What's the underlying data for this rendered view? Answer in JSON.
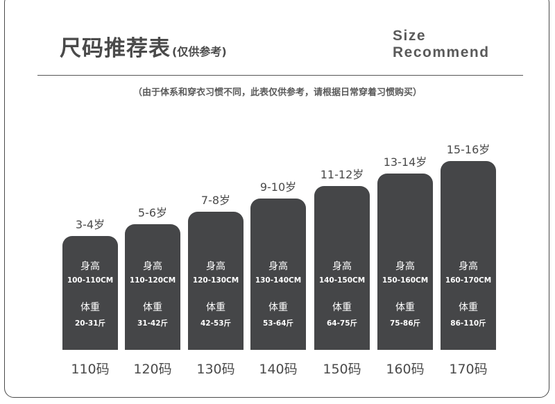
{
  "header": {
    "title": "尺码推荐表",
    "title_note": "(仅供参考)",
    "en_line1": "Size",
    "en_line2": "Recommend",
    "note": "（由于体系和穿衣习惯不同，此表仅供参考，请根据日常穿着习惯购买）"
  },
  "labels": {
    "height": "身高",
    "weight": "体重"
  },
  "colors": {
    "bar": "#454648",
    "text": "#4a4a4a"
  },
  "chart_data": {
    "type": "bar",
    "categories": [
      "110码",
      "120码",
      "130码",
      "140码",
      "150码",
      "160码",
      "170码"
    ],
    "ages": [
      "3-4岁",
      "5-6岁",
      "7-8岁",
      "9-10岁",
      "11-12岁",
      "13-14岁",
      "15-16岁"
    ],
    "heights": [
      "100-110CM",
      "110-120CM",
      "120-130CM",
      "130-140CM",
      "140-150CM",
      "150-160CM",
      "160-170CM"
    ],
    "weights": [
      "20-31斤",
      "31-42斤",
      "42-53斤",
      "53-64斤",
      "64-75斤",
      "75-86斤",
      "86-110斤"
    ]
  }
}
